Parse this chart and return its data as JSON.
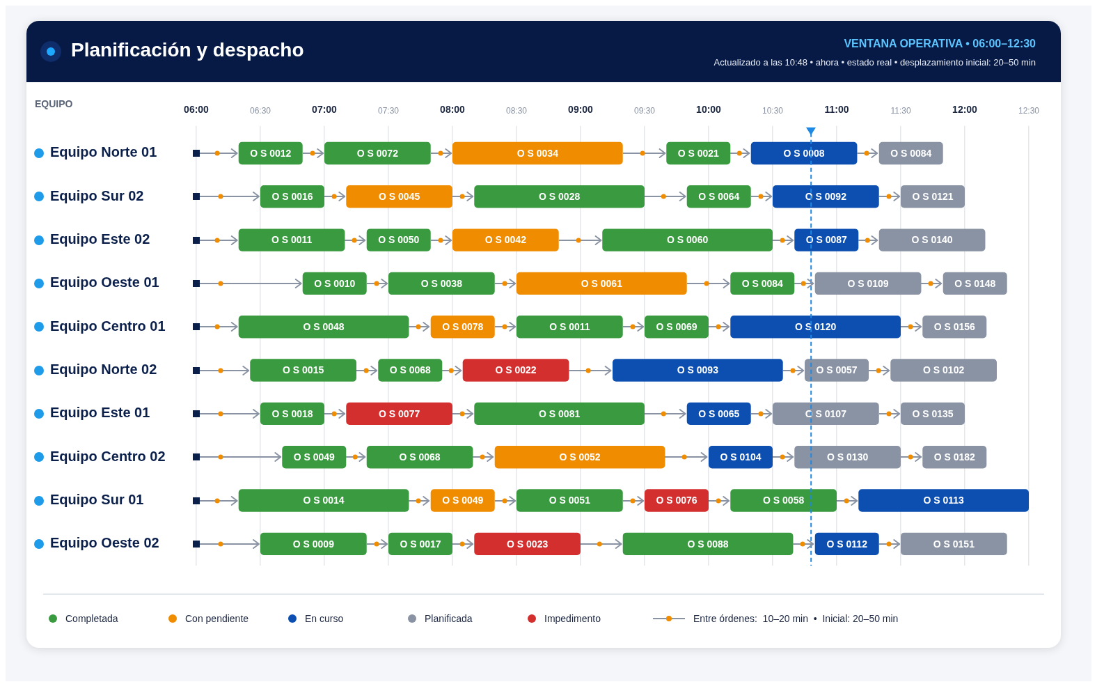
{
  "chart_data": {
    "type": "bar",
    "orientation": "horizontal",
    "title": "Planificación y despacho",
    "subtitle": "VENTANA OPERATIVA • 06:00–12:30",
    "ylabel": "EQUIPO",
    "categories": [
      "Equipo Norte 01",
      "Equipo Sur 02",
      "Equipo Este 02",
      "Equipo Oeste 01",
      "Equipo Centro 01",
      "Equipo Norte 02",
      "Equipo Este 01",
      "Equipo Centro 02",
      "Equipo Sur 01",
      "Equipo Oeste 02"
    ],
    "xlim": [
      6,
      12.5
    ],
    "xticks": [
      {
        "value": 6,
        "label": "06:00"
      },
      {
        "value": 6.5,
        "label": "06:30"
      },
      {
        "value": 7,
        "label": "07:00"
      },
      {
        "value": 7.5,
        "label": "07:30"
      },
      {
        "value": 8,
        "label": "08:00"
      },
      {
        "value": 8.5,
        "label": "08:30"
      },
      {
        "value": 9,
        "label": "09:00"
      },
      {
        "value": 9.5,
        "label": "09:30"
      },
      {
        "value": 10,
        "label": "10:00"
      },
      {
        "value": 10.5,
        "label": "10:30"
      },
      {
        "value": 11,
        "label": "11:00"
      },
      {
        "value": 11.5,
        "label": "11:30"
      },
      {
        "value": 12,
        "label": "12:00"
      },
      {
        "value": 12.5,
        "label": "12:30"
      }
    ],
    "grid": "x",
    "series": [
      {
        "base": [
          6.33,
          6.5,
          6.33,
          6.83,
          6.33,
          6.42,
          6.5,
          6.67,
          6.33,
          6.5
        ],
        "values": [
          0.5,
          0.5,
          0.83,
          0.5,
          1.33,
          0.83,
          0.5,
          0.5,
          1.33,
          0.83
        ],
        "colors": [
          "#3a9a3f",
          "#3a9a3f",
          "#3a9a3f",
          "#3a9a3f",
          "#3a9a3f",
          "#3a9a3f",
          "#3a9a3f",
          "#3a9a3f",
          "#3a9a3f",
          "#3a9a3f"
        ],
        "value_labels": [
          "O S 0012",
          "O S 0016",
          "O S 0011",
          "O S 0010",
          "O S 0048",
          "O S 0015",
          "O S 0018",
          "O S 0049",
          "O S 0014",
          "O S 0009"
        ]
      },
      {
        "base": [
          7,
          7.17,
          7.33,
          7.5,
          7.83,
          7.42,
          7.17,
          7.33,
          7.83,
          7.5
        ],
        "values": [
          0.83,
          0.83,
          0.5,
          0.83,
          0.5,
          0.5,
          0.83,
          0.83,
          0.5,
          0.5
        ],
        "colors": [
          "#3a9a3f",
          "#f08c00",
          "#3a9a3f",
          "#3a9a3f",
          "#f08c00",
          "#3a9a3f",
          "#d32f2f",
          "#3a9a3f",
          "#f08c00",
          "#3a9a3f"
        ],
        "value_labels": [
          "O S 0072",
          "O S 0045",
          "O S 0050",
          "O S 0038",
          "O S 0078",
          "O S 0068",
          "O S 0077",
          "O S 0068",
          "O S 0049",
          "O S 0017"
        ]
      },
      {
        "base": [
          8,
          8.17,
          8,
          8.5,
          8.5,
          8.08,
          8.17,
          8.33,
          8.5,
          8.17
        ],
        "values": [
          1.33,
          1.33,
          0.83,
          1.33,
          0.83,
          0.83,
          1.33,
          1.33,
          0.83,
          0.83
        ],
        "colors": [
          "#f08c00",
          "#3a9a3f",
          "#f08c00",
          "#f08c00",
          "#3a9a3f",
          "#d32f2f",
          "#3a9a3f",
          "#f08c00",
          "#3a9a3f",
          "#d32f2f"
        ],
        "value_labels": [
          "O S 0034",
          "O S 0028",
          "O S 0042",
          "O S 0061",
          "O S 0011",
          "O S 0022",
          "O S 0081",
          "O S 0052",
          "O S 0051",
          "O S 0023"
        ]
      },
      {
        "base": [
          9.67,
          9.83,
          9.17,
          10.17,
          9.5,
          9.25,
          9.83,
          10,
          9.5,
          9.33
        ],
        "values": [
          0.5,
          0.5,
          1.33,
          0.5,
          0.5,
          1.33,
          0.5,
          0.5,
          0.5,
          1.33
        ],
        "colors": [
          "#3a9a3f",
          "#3a9a3f",
          "#3a9a3f",
          "#3a9a3f",
          "#3a9a3f",
          "#0d4fb0",
          "#0d4fb0",
          "#0d4fb0",
          "#d32f2f",
          "#3a9a3f"
        ],
        "value_labels": [
          "O S 0021",
          "O S 0064",
          "O S 0060",
          "O S 0084",
          "O S 0069",
          "O S 0093",
          "O S 0065",
          "O S 0104",
          "O S 0076",
          "O S 0088"
        ]
      },
      {
        "base": [
          10.33,
          10.5,
          10.67,
          10.83,
          10.17,
          10.75,
          10.5,
          10.67,
          10.17,
          10.83
        ],
        "values": [
          0.83,
          0.83,
          0.5,
          0.83,
          1.33,
          0.5,
          0.83,
          0.83,
          0.83,
          0.5
        ],
        "colors": [
          "#0d4fb0",
          "#0d4fb0",
          "#0d4fb0",
          "#8a93a3",
          "#0d4fb0",
          "#8a93a3",
          "#8a93a3",
          "#8a93a3",
          "#3a9a3f",
          "#0d4fb0"
        ],
        "value_labels": [
          "O S 0008",
          "O S 0092",
          "O S 0087",
          "O S 0109",
          "O S 0120",
          "O S 0057",
          "O S 0107",
          "O S 0130",
          "O S 0058",
          "O S 0112"
        ]
      },
      {
        "base": [
          11.33,
          11.5,
          11.33,
          11.83,
          11.67,
          11.42,
          11.5,
          11.67,
          11.17,
          11.5
        ],
        "values": [
          0.5,
          0.5,
          0.83,
          0.5,
          0.5,
          0.83,
          0.5,
          0.5,
          1.33,
          0.83
        ],
        "colors": [
          "#8a93a3",
          "#8a93a3",
          "#8a93a3",
          "#8a93a3",
          "#8a93a3",
          "#8a93a3",
          "#8a93a3",
          "#8a93a3",
          "#0d4fb0",
          "#8a93a3"
        ],
        "value_labels": [
          "O S 0084",
          "O S 0121",
          "O S 0140",
          "O S 0148",
          "O S 0156",
          "O S 0102",
          "O S 0135",
          "O S 0182",
          "O S 0113",
          "O S 0151"
        ]
      }
    ],
    "ref_lines": [
      {
        "axis": "x",
        "value": 10.8,
        "color": "#1e88e5",
        "line_style": "dashed"
      }
    ],
    "annotations": [
      "Actualizado a las 10:48 • ahora • estado real • desplazamiento inicial: 20–50 min",
      "Completada",
      "Con pendiente",
      "En curso",
      "Planificada",
      "Impedimento",
      "Entre órdenes:  10–20 min  •  Inicial: 20–50 min"
    ]
  }
}
